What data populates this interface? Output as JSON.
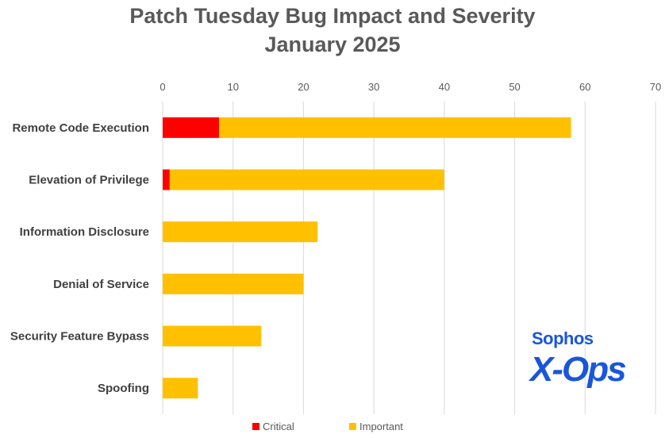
{
  "chart_data": {
    "type": "bar",
    "orientation": "horizontal",
    "stacked": true,
    "title": [
      "Patch Tuesday Bug Impact and Severity",
      "January 2025"
    ],
    "xlabel": "",
    "ylabel": "",
    "xlim": [
      0,
      70
    ],
    "xticks": [
      "0",
      "10",
      "20",
      "30",
      "40",
      "50",
      "60",
      "70"
    ],
    "axis_position": "top",
    "grid": true,
    "legend_position": "bottom",
    "categories": [
      "Remote Code Execution",
      "Elevation of Privilege",
      "Information Disclosure",
      "Denial of Service",
      "Security Feature Bypass",
      "Spoofing"
    ],
    "series": [
      {
        "name": "Critical",
        "color": "#ff0000",
        "values": [
          8,
          1,
          0,
          0,
          0,
          0
        ]
      },
      {
        "name": "Important",
        "color": "#ffc000",
        "values": [
          50,
          39,
          22,
          20,
          14,
          5
        ]
      }
    ]
  },
  "logo": {
    "brand": "Sophos",
    "product": "X-Ops",
    "color": "#1a56db"
  }
}
